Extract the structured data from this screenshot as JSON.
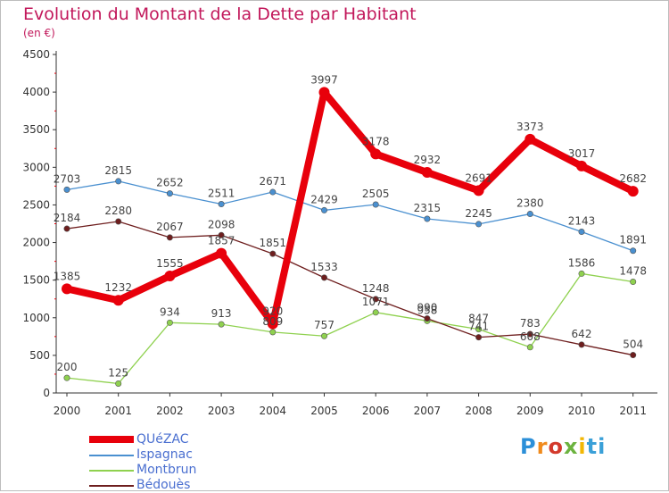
{
  "title": "Evolution du Montant de la Dette par Habitant",
  "subtitle": "(en €)",
  "logo_text": "Proxiti",
  "colors": {
    "title": "#c2185b",
    "axis": "#333333",
    "grid": "#dddddd",
    "legend_text": "#4a6fd0"
  },
  "chart_data": {
    "type": "line",
    "title": "Evolution du Montant de la Dette par Habitant",
    "subtitle": "(en €)",
    "x": [
      "2000",
      "2001",
      "2002",
      "2003",
      "2004",
      "2005",
      "2006",
      "2007",
      "2008",
      "2009",
      "2010",
      "2011"
    ],
    "ylim": [
      0,
      4500
    ],
    "yticks": [
      0,
      500,
      1000,
      1500,
      2000,
      2500,
      3000,
      3500,
      4000,
      4500
    ],
    "grid": false,
    "legend_position": "bottom-left",
    "series": [
      {
        "name": "QUéZAC",
        "color": "#e8000b",
        "emphasis": true,
        "values": [
          1385,
          1232,
          1555,
          1857,
          920,
          3997,
          3178,
          2932,
          2691,
          3373,
          3017,
          2682
        ],
        "labels": [
          "1385",
          "1232",
          "1555",
          "1857",
          "920",
          "3997",
          "3178",
          "2932",
          "2691",
          "3373",
          "3017",
          "2682"
        ]
      },
      {
        "name": "Ispagnac",
        "color": "#4a90d0",
        "emphasis": false,
        "values": [
          2703,
          2815,
          2652,
          2511,
          2671,
          2429,
          2505,
          2315,
          2245,
          2380,
          2143,
          1891
        ],
        "labels": [
          "2703",
          "2815",
          "2652",
          "2511",
          "2671",
          "2429",
          "2505",
          "2315",
          "2245",
          "2380",
          "2143",
          "1891"
        ]
      },
      {
        "name": "Montbrun",
        "color": "#8fd14f",
        "emphasis": false,
        "values": [
          200,
          125,
          934,
          913,
          809,
          757,
          1071,
          958,
          847,
          608,
          1586,
          1478
        ],
        "labels": [
          "200",
          "125",
          "934",
          "913",
          "809",
          "757",
          "1071",
          "958",
          "847",
          "608",
          "1586",
          "1478"
        ]
      },
      {
        "name": "Bédouès",
        "color": "#6e1e1e",
        "emphasis": false,
        "values": [
          2184,
          2280,
          2067,
          2098,
          1851,
          1533,
          1248,
          990,
          741,
          783,
          642,
          504
        ],
        "labels": [
          "2184",
          "2280",
          "2067",
          "2098",
          "1851",
          "1533",
          "1248",
          "990",
          "741",
          "783",
          "642",
          "504"
        ]
      }
    ]
  }
}
